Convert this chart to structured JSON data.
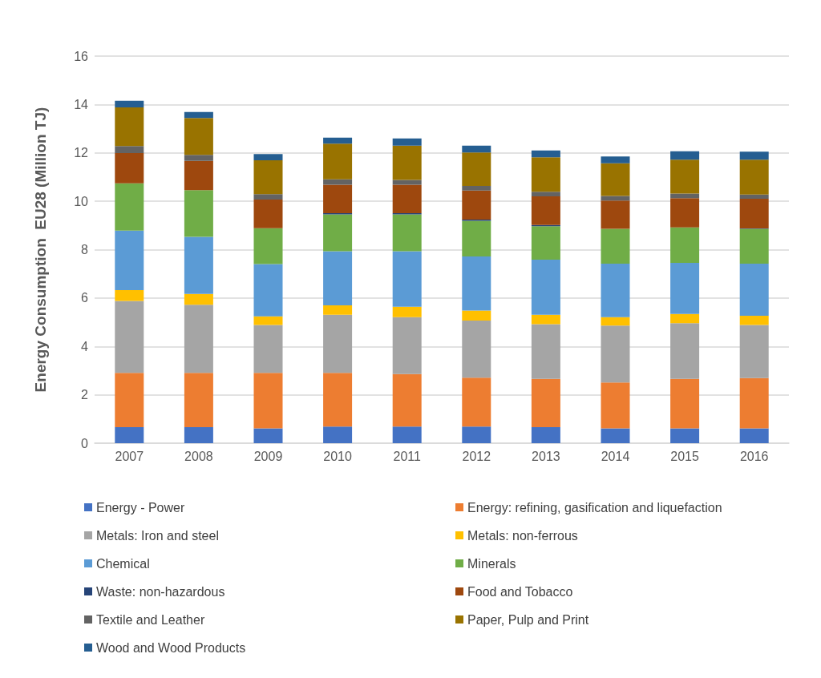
{
  "chart_data": {
    "type": "bar",
    "stacked": true,
    "ylabel": "Energy Consumption  EU28 (Million TJ)",
    "categories": [
      "2007",
      "2008",
      "2009",
      "2010",
      "2011",
      "2012",
      "2013",
      "2014",
      "2015",
      "2016"
    ],
    "ylim": [
      0,
      16
    ],
    "yticks": [
      0,
      2,
      4,
      6,
      8,
      10,
      12,
      14,
      16
    ],
    "grid": "y",
    "legend": "bottom",
    "series": [
      {
        "name": "Energy - Power",
        "color": "#4472c4",
        "values": [
          0.66,
          0.66,
          0.61,
          0.69,
          0.69,
          0.69,
          0.66,
          0.61,
          0.61,
          0.61
        ]
      },
      {
        "name": "Energy: refining, gasification and liquefaction",
        "color": "#ed7d31",
        "values": [
          2.25,
          2.25,
          2.3,
          2.22,
          2.17,
          2.02,
          2.0,
          1.9,
          2.05,
          2.08
        ]
      },
      {
        "name": "Metals: Iron and steel",
        "color": "#a5a5a5",
        "values": [
          2.97,
          2.81,
          1.98,
          2.4,
          2.35,
          2.36,
          2.26,
          2.35,
          2.3,
          2.2
        ]
      },
      {
        "name": "Metals: non-ferrous",
        "color": "#ffc000",
        "values": [
          0.45,
          0.45,
          0.35,
          0.39,
          0.43,
          0.41,
          0.39,
          0.35,
          0.38,
          0.38
        ]
      },
      {
        "name": "Chemical",
        "color": "#5b9bd5",
        "values": [
          2.46,
          2.36,
          2.16,
          2.23,
          2.29,
          2.24,
          2.28,
          2.21,
          2.11,
          2.15
        ]
      },
      {
        "name": "Minerals",
        "color": "#70ad47",
        "values": [
          1.95,
          1.93,
          1.49,
          1.53,
          1.53,
          1.47,
          1.38,
          1.44,
          1.47,
          1.44
        ]
      },
      {
        "name": "Waste: non-hazardous",
        "color": "#264478",
        "values": [
          0,
          0,
          0,
          0.05,
          0.05,
          0.05,
          0.05,
          0,
          0,
          0.02
        ]
      },
      {
        "name": "Food and Tobacco",
        "color": "#9e480e",
        "values": [
          1.25,
          1.21,
          1.18,
          1.17,
          1.17,
          1.2,
          1.18,
          1.17,
          1.21,
          1.22
        ]
      },
      {
        "name": "Textile and Leather",
        "color": "#636363",
        "values": [
          0.29,
          0.25,
          0.22,
          0.23,
          0.2,
          0.19,
          0.19,
          0.19,
          0.19,
          0.18
        ]
      },
      {
        "name": "Paper, Pulp and Print",
        "color": "#997300",
        "values": [
          1.6,
          1.52,
          1.4,
          1.47,
          1.42,
          1.39,
          1.43,
          1.35,
          1.4,
          1.44
        ]
      },
      {
        "name": "Wood and Wood Products",
        "color": "#255e91",
        "values": [
          0.27,
          0.25,
          0.26,
          0.25,
          0.3,
          0.28,
          0.28,
          0.28,
          0.35,
          0.33
        ]
      }
    ]
  }
}
